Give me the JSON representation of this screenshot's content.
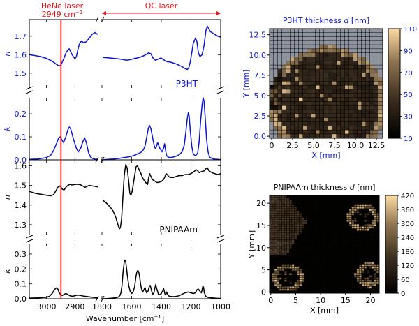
{
  "figure": {
    "annotations": {
      "hene_label": "HeNe laser",
      "hene_value": "2949 cm",
      "hene_sup": "−1",
      "qc_label": "QC laser"
    },
    "colors": {
      "p3ht": "#0a14d2",
      "pnipaam": "#000000",
      "laser": "#e8161b"
    }
  },
  "chart_data": [
    {
      "type": "line",
      "panel": "P3HT n",
      "ylabel": "n",
      "series_label": "P3HT",
      "color": "#0a14d2",
      "ylim": [
        1.42,
        1.79
      ],
      "yticks": [
        "1.5",
        "1.6",
        "1.7"
      ],
      "segments": [
        {
          "x": [
            3060,
            3040,
            3020,
            3000,
            2980,
            2965,
            2955,
            2949,
            2940,
            2930,
            2920,
            2910,
            2900,
            2895,
            2890,
            2885,
            2880,
            2875,
            2870,
            2860,
            2850,
            2840,
            2830,
            2820
          ],
          "y": [
            1.6,
            1.595,
            1.59,
            1.58,
            1.565,
            1.548,
            1.538,
            1.545,
            1.575,
            1.615,
            1.632,
            1.6,
            1.578,
            1.59,
            1.625,
            1.655,
            1.67,
            1.672,
            1.665,
            1.67,
            1.69,
            1.71,
            1.72,
            1.71
          ]
        },
        {
          "x": [
            1795,
            1760,
            1720,
            1690,
            1670,
            1650,
            1630,
            1615,
            1600,
            1590,
            1580,
            1565,
            1550,
            1535,
            1520,
            1505,
            1495,
            1485,
            1470,
            1455,
            1440,
            1425,
            1410,
            1400,
            1390,
            1380,
            1370,
            1360,
            1340,
            1300,
            1260,
            1240,
            1225,
            1215,
            1205,
            1195,
            1185,
            1170,
            1160,
            1150,
            1140,
            1125,
            1112,
            1100,
            1090,
            1080,
            1070,
            1060,
            1050,
            1040,
            1020,
            1000
          ],
          "y": [
            1.585,
            1.583,
            1.58,
            1.578,
            1.575,
            1.572,
            1.57,
            1.572,
            1.575,
            1.577,
            1.58,
            1.582,
            1.585,
            1.589,
            1.594,
            1.6,
            1.605,
            1.61,
            1.605,
            1.58,
            1.57,
            1.575,
            1.58,
            1.582,
            1.575,
            1.57,
            1.565,
            1.562,
            1.56,
            1.55,
            1.535,
            1.525,
            1.52,
            1.53,
            1.56,
            1.61,
            1.66,
            1.69,
            1.67,
            1.61,
            1.59,
            1.6,
            1.65,
            1.73,
            1.755,
            1.74,
            1.725,
            1.72,
            1.715,
            1.71,
            1.7,
            1.695
          ]
        }
      ]
    },
    {
      "type": "line",
      "panel": "P3HT k",
      "ylabel": "k",
      "color": "#0a14d2",
      "ylim": [
        0.0,
        0.27
      ],
      "yticks": [
        "0.0",
        "0.1",
        "0.2"
      ],
      "segments": [
        {
          "x": [
            3060,
            3030,
            3000,
            2985,
            2975,
            2965,
            2958,
            2952,
            2946,
            2940,
            2932,
            2925,
            2920,
            2915,
            2905,
            2895,
            2888,
            2880,
            2872,
            2866,
            2860,
            2852,
            2845,
            2838,
            2830,
            2820
          ],
          "y": [
            0.002,
            0.004,
            0.01,
            0.02,
            0.04,
            0.07,
            0.093,
            0.1,
            0.088,
            0.075,
            0.1,
            0.13,
            0.143,
            0.135,
            0.09,
            0.05,
            0.035,
            0.05,
            0.08,
            0.095,
            0.075,
            0.03,
            0.012,
            0.006,
            0.003,
            0.002
          ]
        },
        {
          "x": [
            1795,
            1760,
            1720,
            1690,
            1660,
            1640,
            1620,
            1600,
            1580,
            1560,
            1545,
            1530,
            1520,
            1510,
            1502,
            1495,
            1488,
            1480,
            1470,
            1455,
            1445,
            1440,
            1435,
            1425,
            1410,
            1395,
            1385,
            1378,
            1372,
            1365,
            1355,
            1340,
            1320,
            1300,
            1280,
            1260,
            1245,
            1235,
            1225,
            1218,
            1212,
            1205,
            1195,
            1185,
            1170,
            1155,
            1145,
            1135,
            1125,
            1118,
            1112,
            1105,
            1095,
            1085,
            1075,
            1060,
            1040,
            1020,
            1000
          ],
          "y": [
            0.0,
            0.002,
            0.004,
            0.006,
            0.009,
            0.011,
            0.013,
            0.016,
            0.02,
            0.026,
            0.03,
            0.036,
            0.045,
            0.06,
            0.085,
            0.11,
            0.135,
            0.15,
            0.135,
            0.085,
            0.055,
            0.05,
            0.055,
            0.075,
            0.05,
            0.035,
            0.05,
            0.07,
            0.045,
            0.02,
            0.012,
            0.01,
            0.012,
            0.016,
            0.022,
            0.035,
            0.065,
            0.12,
            0.18,
            0.205,
            0.19,
            0.13,
            0.06,
            0.025,
            0.018,
            0.03,
            0.08,
            0.17,
            0.24,
            0.27,
            0.255,
            0.19,
            0.09,
            0.035,
            0.012,
            0.006,
            0.003,
            0.002,
            0.001
          ]
        }
      ]
    },
    {
      "type": "line",
      "panel": "PNIPAAm n",
      "ylabel": "n",
      "color": "#000000",
      "ylim": [
        1.25,
        1.63
      ],
      "yticks": [
        "1.3",
        "1.4",
        "1.5",
        "1.6"
      ],
      "segments": [
        {
          "x": [
            3060,
            3040,
            3020,
            3000,
            2985,
            2975,
            2968,
            2960,
            2955,
            2949,
            2944,
            2938,
            2932,
            2925,
            2918,
            2910,
            2900,
            2890,
            2880,
            2870,
            2865,
            2858,
            2850,
            2840,
            2830,
            2820
          ],
          "y": [
            1.47,
            1.46,
            1.455,
            1.45,
            1.447,
            1.453,
            1.47,
            1.49,
            1.498,
            1.492,
            1.48,
            1.477,
            1.49,
            1.5,
            1.505,
            1.502,
            1.505,
            1.506,
            1.503,
            1.495,
            1.49,
            1.495,
            1.5,
            1.498,
            1.495,
            1.493
          ]
        },
        {
          "x": [
            1795,
            1770,
            1745,
            1725,
            1710,
            1700,
            1692,
            1685,
            1680,
            1675,
            1668,
            1660,
            1650,
            1640,
            1630,
            1620,
            1612,
            1605,
            1598,
            1590,
            1580,
            1570,
            1560,
            1550,
            1540,
            1530,
            1520,
            1510,
            1500,
            1492,
            1485,
            1478,
            1470,
            1460,
            1450,
            1440,
            1430,
            1420,
            1400,
            1385,
            1375,
            1368,
            1360,
            1350,
            1340,
            1320,
            1300,
            1280,
            1260,
            1240,
            1220,
            1200,
            1180,
            1165,
            1155,
            1145,
            1130,
            1110,
            1100,
            1090,
            1080,
            1060,
            1040,
            1020,
            1000
          ],
          "y": [
            1.425,
            1.41,
            1.39,
            1.37,
            1.345,
            1.32,
            1.3,
            1.285,
            1.28,
            1.29,
            1.33,
            1.43,
            1.55,
            1.605,
            1.59,
            1.52,
            1.46,
            1.45,
            1.465,
            1.5,
            1.55,
            1.595,
            1.6,
            1.58,
            1.565,
            1.545,
            1.53,
            1.52,
            1.51,
            1.505,
            1.54,
            1.56,
            1.545,
            1.53,
            1.525,
            1.52,
            1.515,
            1.515,
            1.52,
            1.53,
            1.545,
            1.56,
            1.555,
            1.545,
            1.54,
            1.54,
            1.545,
            1.55,
            1.55,
            1.555,
            1.555,
            1.56,
            1.57,
            1.58,
            1.575,
            1.565,
            1.57,
            1.575,
            1.585,
            1.59,
            1.575,
            1.565,
            1.56,
            1.555,
            1.56
          ]
        }
      ]
    },
    {
      "type": "line",
      "panel": "PNIPAAm k",
      "ylabel": "k",
      "series_label": "PNIPAAm",
      "color": "#000000",
      "ylim": [
        0.0,
        0.37
      ],
      "yticks": [
        "0.0",
        "0.1",
        "0.2",
        "0.3"
      ],
      "segments": [
        {
          "x": [
            3060,
            3030,
            3000,
            2990,
            2980,
            2972,
            2966,
            2960,
            2955,
            2949,
            2944,
            2938,
            2932,
            2926,
            2918,
            2910,
            2900,
            2890,
            2880,
            2870,
            2860,
            2850,
            2840,
            2830,
            2820
          ],
          "y": [
            0.004,
            0.006,
            0.01,
            0.016,
            0.035,
            0.06,
            0.073,
            0.065,
            0.04,
            0.025,
            0.022,
            0.03,
            0.035,
            0.03,
            0.02,
            0.017,
            0.02,
            0.025,
            0.022,
            0.018,
            0.016,
            0.013,
            0.01,
            0.008,
            0.006
          ]
        },
        {
          "x": [
            1795,
            1760,
            1730,
            1700,
            1690,
            1680,
            1672,
            1665,
            1658,
            1650,
            1645,
            1640,
            1635,
            1628,
            1620,
            1610,
            1600,
            1590,
            1580,
            1572,
            1565,
            1558,
            1552,
            1545,
            1540,
            1532,
            1525,
            1518,
            1510,
            1500,
            1490,
            1482,
            1475,
            1465,
            1458,
            1450,
            1444,
            1438,
            1430,
            1420,
            1410,
            1400,
            1390,
            1385,
            1380,
            1375,
            1370,
            1365,
            1360,
            1352,
            1345,
            1340,
            1330,
            1320,
            1300,
            1280,
            1260,
            1240,
            1220,
            1200,
            1185,
            1170,
            1160,
            1150,
            1140,
            1130,
            1125,
            1120,
            1115,
            1110,
            1100,
            1090,
            1080,
            1070,
            1060,
            1050,
            1040,
            1030,
            1020,
            1000
          ],
          "y": [
            0.0,
            0.002,
            0.004,
            0.008,
            0.012,
            0.02,
            0.04,
            0.09,
            0.18,
            0.245,
            0.26,
            0.25,
            0.21,
            0.15,
            0.09,
            0.05,
            0.035,
            0.045,
            0.08,
            0.14,
            0.18,
            0.19,
            0.18,
            0.14,
            0.1,
            0.06,
            0.045,
            0.06,
            0.075,
            0.04,
            0.05,
            0.08,
            0.09,
            0.05,
            0.03,
            0.04,
            0.07,
            0.095,
            0.065,
            0.03,
            0.028,
            0.035,
            0.055,
            0.07,
            0.05,
            0.03,
            0.025,
            0.045,
            0.035,
            0.02,
            0.017,
            0.016,
            0.015,
            0.014,
            0.016,
            0.02,
            0.03,
            0.04,
            0.045,
            0.04,
            0.035,
            0.04,
            0.06,
            0.065,
            0.05,
            0.04,
            0.06,
            0.085,
            0.075,
            0.04,
            0.015,
            0.01,
            0.008,
            0.007,
            0.006,
            0.005,
            0.004,
            0.003,
            0.003,
            0.002
          ]
        }
      ]
    },
    {
      "type": "heatmap",
      "panel": "P3HT thickness map",
      "title": "P3HT thickness d [nm]",
      "title_parts": [
        "P3HT thickness ",
        "d",
        " [nm]"
      ],
      "xlabel": "X [mm]",
      "ylabel": "Y [mm]",
      "xlim": [
        -0.25,
        13.25
      ],
      "ylim": [
        -0.25,
        13.25
      ],
      "xticks": [
        "0",
        "2.5",
        "5.0",
        "7.5",
        "10.0",
        "12.5"
      ],
      "yticks": [
        "0.0",
        "2.5",
        "5.0",
        "7.5",
        "10.0",
        "12.5"
      ],
      "colorbar_ticks": [
        "10",
        "30",
        "50",
        "70",
        "90",
        "110"
      ],
      "clim": [
        10,
        110
      ],
      "grid_size": [
        27,
        27
      ]
    },
    {
      "type": "heatmap",
      "panel": "PNIPAAm thickness map",
      "title": "PNIPAAm thickness d [nm]",
      "title_parts": [
        "PNIPAAm thickness ",
        "d",
        " [nm]"
      ],
      "xlabel": "X [mm]",
      "ylabel": "Y [mm]",
      "xlim": [
        -0.25,
        21.75
      ],
      "ylim": [
        -0.25,
        21.75
      ],
      "xticks": [
        "0",
        "5",
        "10",
        "15",
        "20"
      ],
      "yticks": [
        "0",
        "5",
        "10",
        "15",
        "20"
      ],
      "colorbar_ticks": [
        "0",
        "60",
        "120",
        "180",
        "240",
        "300",
        "360",
        "420"
      ],
      "clim": [
        0,
        420
      ],
      "grid_size": [
        44,
        44
      ]
    }
  ],
  "spectra_axis": {
    "xlabel": "Wavenumber [cm",
    "xlabel_sup": "−1",
    "xlabel_end": "]",
    "left_xlim": [
      3060,
      2820
    ],
    "right_xlim": [
      1800,
      1000
    ],
    "left_ticks": [
      {
        "v": 3000,
        "t": "3000"
      },
      {
        "v": 2900,
        "t": "2900"
      }
    ],
    "right_ticks": [
      {
        "v": 1800,
        "t": "1800"
      },
      {
        "v": 1600,
        "t": "1600"
      },
      {
        "v": 1400,
        "t": "1400"
      },
      {
        "v": 1200,
        "t": "1200"
      },
      {
        "v": 1000,
        "t": "1000"
      }
    ],
    "laser_wavenumber": 2949
  }
}
